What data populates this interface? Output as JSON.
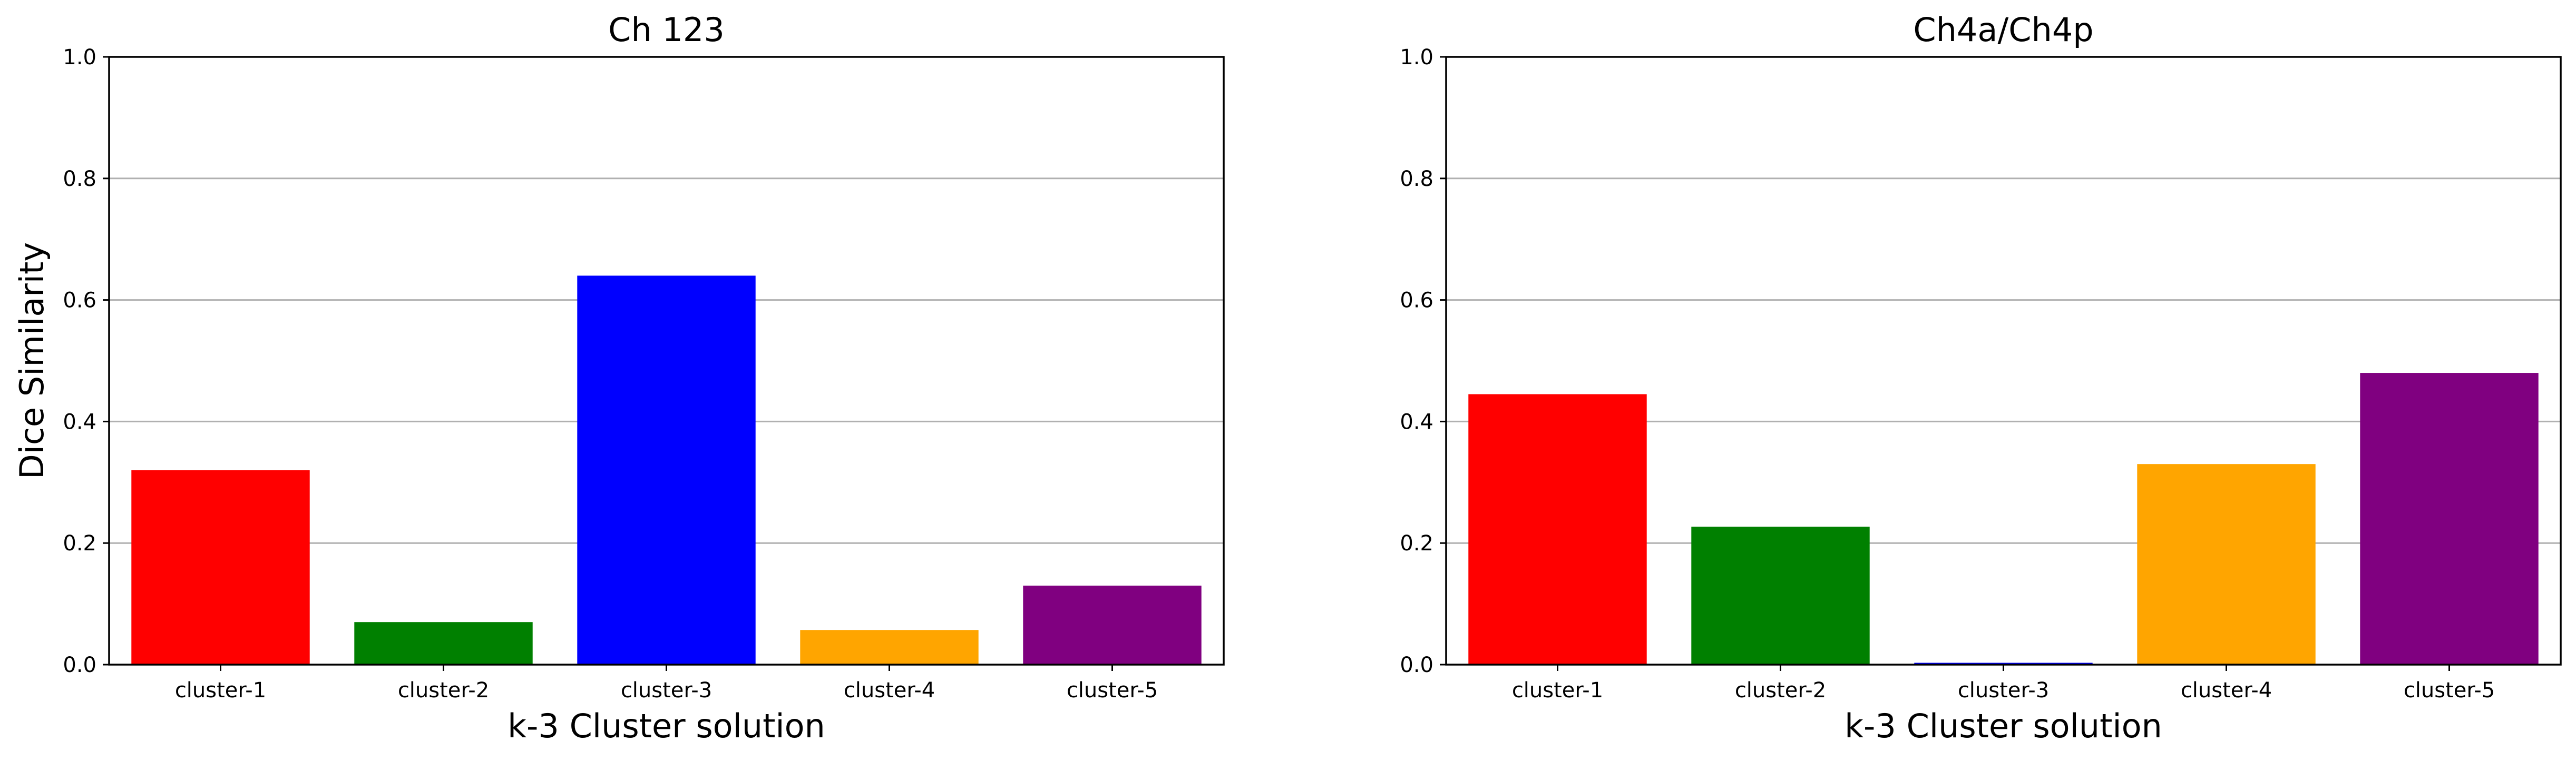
{
  "chart_data": [
    {
      "type": "bar",
      "title": "Ch 123",
      "xlabel": "k-3 Cluster solution",
      "ylabel": "Dice Similarity",
      "ylim": [
        0,
        1.0
      ],
      "yticks": [
        "0.0",
        "0.2",
        "0.4",
        "0.6",
        "0.8",
        "1.0"
      ],
      "grid": "horizontal",
      "categories": [
        "cluster-1",
        "cluster-2",
        "cluster-3",
        "cluster-4",
        "cluster-5"
      ],
      "values": [
        0.32,
        0.07,
        0.64,
        0.057,
        0.13
      ],
      "colors": [
        "#ff0000",
        "#008000",
        "#0000ff",
        "#ffa500",
        "#800080"
      ]
    },
    {
      "type": "bar",
      "title": "Ch4a/Ch4p",
      "xlabel": "k-3 Cluster solution",
      "ylabel": "",
      "ylim": [
        0,
        1.0
      ],
      "yticks": [
        "0.0",
        "0.2",
        "0.4",
        "0.6",
        "0.8",
        "1.0"
      ],
      "grid": "horizontal",
      "categories": [
        "cluster-1",
        "cluster-2",
        "cluster-3",
        "cluster-4",
        "cluster-5"
      ],
      "values": [
        0.445,
        0.227,
        0.003,
        0.33,
        0.48
      ],
      "colors": [
        "#ff0000",
        "#008000",
        "#0000ff",
        "#ffa500",
        "#800080"
      ]
    }
  ]
}
